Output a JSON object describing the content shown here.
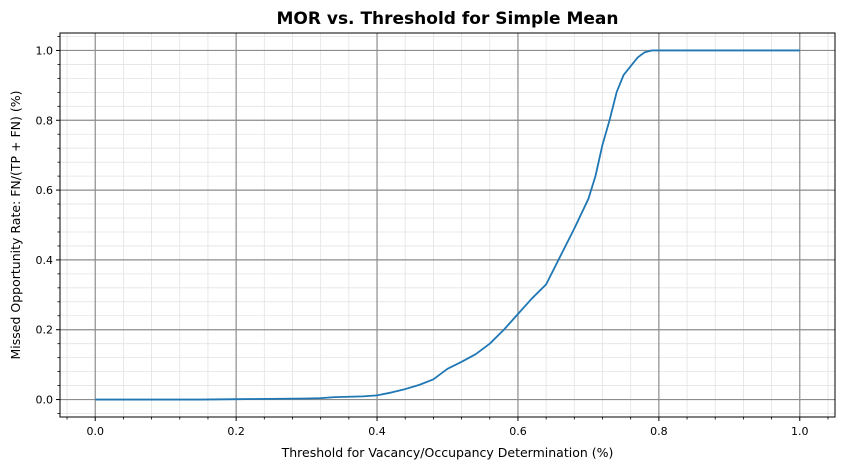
{
  "chart_data": {
    "type": "line",
    "title": "MOR vs. Threshold for Simple Mean",
    "xlabel": "Threshold for Vacancy/Occupancy Determination (%)",
    "ylabel": "Missed Opportunity Rate: FN/(TP + FN) (%)",
    "xlim": [
      -0.05,
      1.05
    ],
    "ylim": [
      -0.05,
      1.05
    ],
    "xticks": [
      0.0,
      0.2,
      0.4,
      0.6,
      0.8,
      1.0
    ],
    "xtick_labels": [
      "0.0",
      "0.2",
      "0.4",
      "0.6",
      "0.8",
      "1.0"
    ],
    "yticks": [
      0.0,
      0.2,
      0.4,
      0.6,
      0.8,
      1.0
    ],
    "ytick_labels": [
      "0.0",
      "0.2",
      "0.4",
      "0.6",
      "0.8",
      "1.0"
    ],
    "grid": {
      "major": true,
      "minor": true
    },
    "line_color": "#1f77b4",
    "major_grid_color": "#8c8c8c",
    "minor_grid_color": "#e3e3e3",
    "series": [
      {
        "x": [
          0.0,
          0.05,
          0.1,
          0.15,
          0.2,
          0.25,
          0.3,
          0.32,
          0.34,
          0.36,
          0.38,
          0.4,
          0.42,
          0.44,
          0.46,
          0.48,
          0.5,
          0.52,
          0.54,
          0.56,
          0.58,
          0.6,
          0.62,
          0.64,
          0.66,
          0.68,
          0.7,
          0.71,
          0.72,
          0.73,
          0.74,
          0.75,
          0.76,
          0.77,
          0.78,
          0.79,
          0.8,
          0.85,
          0.9,
          0.95,
          1.0
        ],
        "y": [
          0.0,
          0.0,
          0.0,
          0.0,
          0.001,
          0.002,
          0.003,
          0.004,
          0.007,
          0.008,
          0.009,
          0.012,
          0.02,
          0.03,
          0.042,
          0.058,
          0.088,
          0.108,
          0.13,
          0.16,
          0.2,
          0.245,
          0.29,
          0.33,
          0.41,
          0.49,
          0.575,
          0.64,
          0.73,
          0.8,
          0.88,
          0.93,
          0.955,
          0.98,
          0.995,
          1.0,
          1.0,
          1.0,
          1.0,
          1.0,
          1.0
        ]
      }
    ]
  }
}
